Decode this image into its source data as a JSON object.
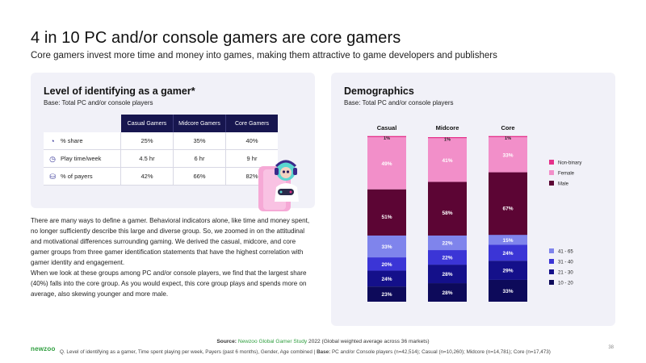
{
  "header": {
    "title": "4 in 10 PC and/or console gamers are core gamers",
    "subtitle": "Core gamers invest more time and money into games, making them attractive to game developers and publishers"
  },
  "left_panel": {
    "title": "Level of identifying as a gamer*",
    "base": "Base: Total PC and/or console players",
    "table": {
      "headers": [
        "Casual Gamers",
        "Midcore Gamers",
        "Core Gamers"
      ],
      "rows": [
        {
          "label": "% share",
          "icon": "pie-chart-icon",
          "values": [
            "25%",
            "35%",
            "40%"
          ]
        },
        {
          "label": "Play time/week",
          "icon": "clock-icon",
          "values": [
            "4.5 hr",
            "6 hr",
            "9 hr"
          ]
        },
        {
          "label": "% of payers",
          "icon": "coins-icon",
          "values": [
            "42%",
            "66%",
            "82%"
          ]
        }
      ]
    }
  },
  "body": {
    "paragraph1": "There are many ways to define a gamer. Behavioral indicators alone, like time and money spent, no longer sufficiently describe this large and diverse group. So, we zoomed in on the attitudinal and motivational differences surrounding gaming. We derived the casual, midcore, and core gamer groups from three gamer identification statements that have the highest correlation with gamer identity and engagement.",
    "paragraph2": "When we look at these groups among PC and/or console players, we find that the largest share (40%) falls into the core group. As you would expect, this core group plays and spends more on average, also skewing younger and more male."
  },
  "right_panel": {
    "title": "Demographics",
    "base": "Base: Total PC and/or console players"
  },
  "chart_data": [
    {
      "type": "bar",
      "stacked": true,
      "title": "",
      "categories": [
        "Casual",
        "Midcore",
        "Core"
      ],
      "ylim": [
        0,
        100
      ],
      "legend_position": "right",
      "series": [
        {
          "name": "Male",
          "color": "#5c0534",
          "values": [
            51,
            58,
            67
          ],
          "labels": [
            "51%",
            "58%",
            "67%"
          ]
        },
        {
          "name": "Female",
          "color": "#f28fc9",
          "values": [
            49,
            41,
            33
          ],
          "labels": [
            "49%",
            "41%",
            "33%"
          ]
        },
        {
          "name": "Non-binary",
          "color": "#e5308a",
          "values": [
            1,
            1,
            1
          ],
          "labels": [
            "1%",
            "1%",
            "1%"
          ]
        }
      ]
    },
    {
      "type": "bar",
      "stacked": true,
      "title": "",
      "categories": [
        "Casual",
        "Midcore",
        "Core"
      ],
      "ylim": [
        0,
        100
      ],
      "legend_position": "right",
      "series": [
        {
          "name": "10 - 20",
          "color": "#0d0a5a",
          "values": [
            23,
            28,
            33
          ],
          "labels": [
            "23%",
            "28%",
            "33%"
          ]
        },
        {
          "name": "21 - 30",
          "color": "#14108a",
          "values": [
            24,
            28,
            29
          ],
          "labels": [
            "24%",
            "28%",
            "29%"
          ]
        },
        {
          "name": "31 - 40",
          "color": "#3b35d6",
          "values": [
            20,
            22,
            24
          ],
          "labels": [
            "20%",
            "22%",
            "24%"
          ]
        },
        {
          "name": "41 - 65",
          "color": "#7f84ec",
          "values": [
            33,
            22,
            15
          ],
          "labels": [
            "33%",
            "22%",
            "15%"
          ]
        }
      ]
    }
  ],
  "footer": {
    "source_label": "Source:",
    "source_link": "Newzoo Global Gamer Study",
    "source_rest": "2022 (Global weighted average across 36 markets)",
    "question": "Q. Level of identifying as a gamer, Time spent playing per week, Payers (past 6 months), Gender, Age combined  |",
    "base_label": "Base:",
    "base_rest": "PC and/or Console players (n=42,514);  Casual (n=10,260); Midcore (n=14,781); Core (n=17,473)",
    "logo": "newzoo",
    "page": "38"
  }
}
